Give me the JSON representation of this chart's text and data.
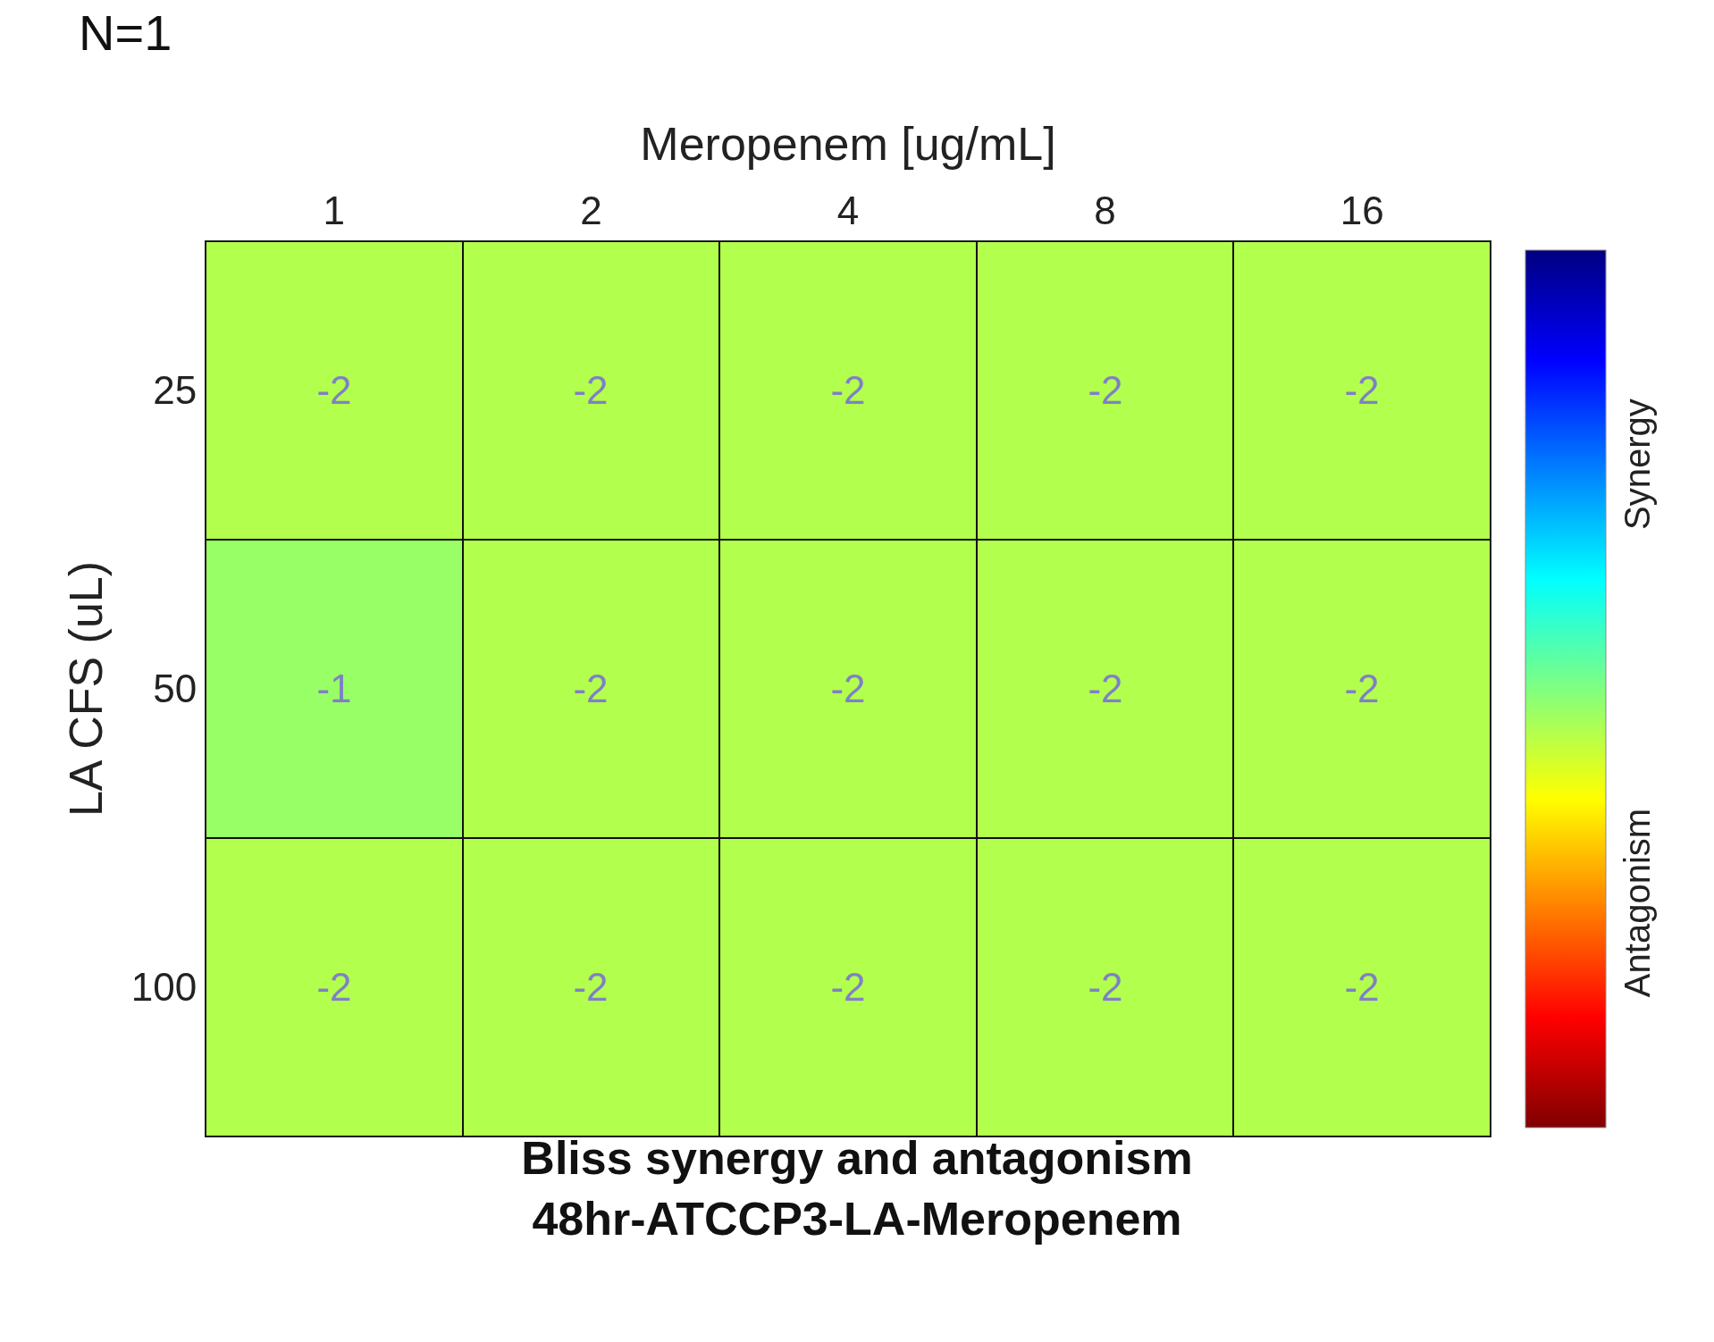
{
  "chart_data": {
    "type": "heatmap",
    "title": "Bliss synergy and antagonism\n48hr-ATCCP3-LA-Meropenem",
    "xlabel": "Meropenem [ug/mL]",
    "ylabel": "LA CFS (uL)",
    "categories": [
      "1",
      "2",
      "4",
      "8",
      "16"
    ],
    "y_categories": [
      "25",
      "50",
      "100"
    ],
    "cells": [
      [
        -2,
        -2,
        -2,
        -2,
        -2
      ],
      [
        -1,
        -2,
        -2,
        -2,
        -2
      ],
      [
        -2,
        -2,
        -2,
        -2,
        -2
      ]
    ],
    "clim": [
      -20,
      20
    ],
    "cticks": [
      {
        "value": -10,
        "label": "Antagonism"
      },
      {
        "value": 10,
        "label": "Synergy"
      }
    ],
    "data_labels": true,
    "annotations": [
      "N=1"
    ]
  }
}
